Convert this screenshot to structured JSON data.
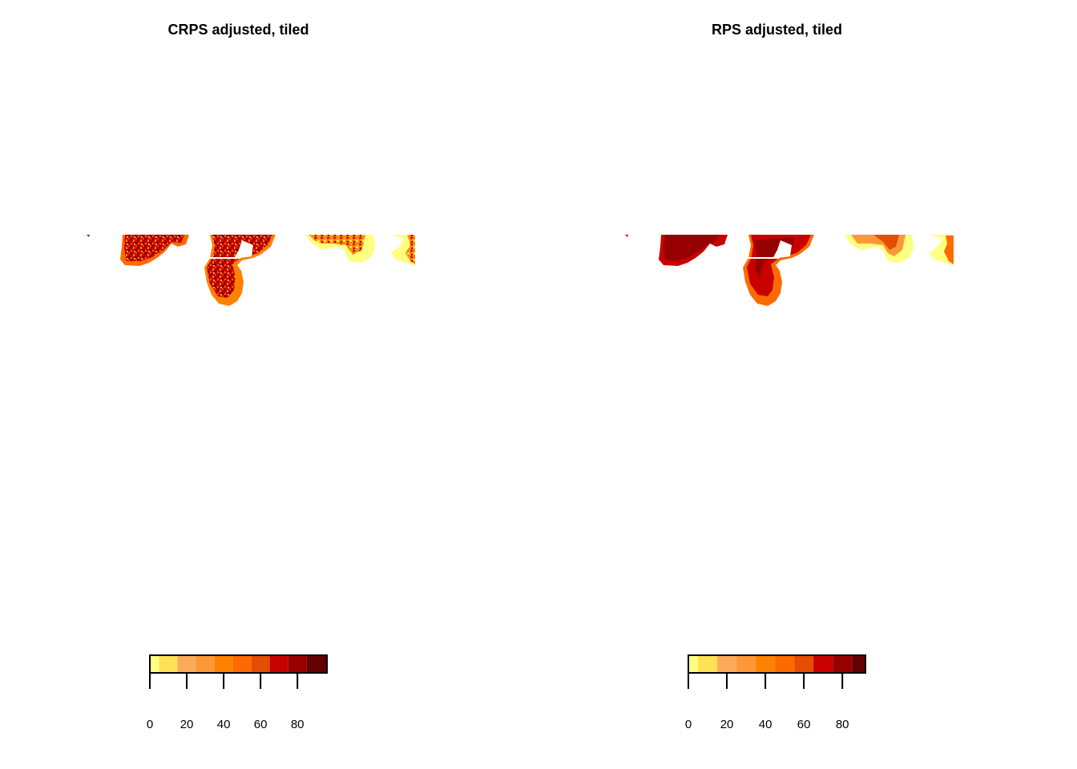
{
  "panels": [
    {
      "title": "CRPS adjusted, tiled",
      "colorbar": {
        "ticks": [
          "0",
          "20",
          "40",
          "60",
          "80"
        ],
        "tick_values": [
          0,
          20,
          40,
          60,
          80
        ],
        "range": [
          0,
          96
        ],
        "colors": [
          "#FFFF80",
          "#FFE155",
          "#FDAA5A",
          "#FD9839",
          "#FD8200",
          "#FD6A00",
          "#E44E00",
          "#C80000",
          "#970000",
          "#640000"
        ]
      }
    },
    {
      "title": "RPS adjusted, tiled",
      "colorbar": {
        "ticks": [
          "0",
          "20",
          "40",
          "60",
          "80"
        ],
        "tick_values": [
          0,
          20,
          40,
          60,
          80
        ],
        "range": [
          0,
          92
        ],
        "colors": [
          "#FFFF80",
          "#FFE155",
          "#FDAA5A",
          "#FD9839",
          "#FD8200",
          "#FD6A00",
          "#E44E00",
          "#C80000",
          "#970000",
          "#640000"
        ]
      }
    }
  ]
}
